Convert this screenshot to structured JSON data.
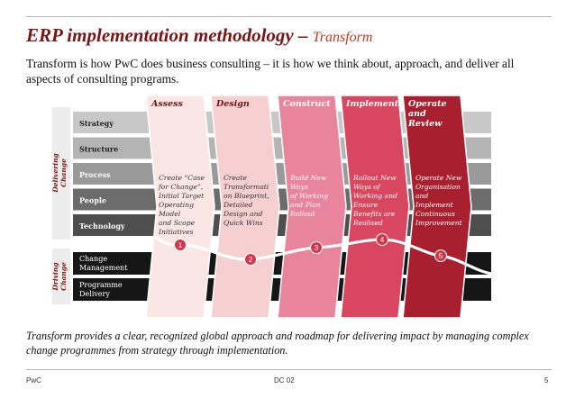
{
  "title": {
    "main": "ERP implementation methodology – ",
    "sub": "Transform"
  },
  "intro": "Transform is how PwC does business consulting – it is how we think about, approach, and deliver all aspects of consulting programs.",
  "conclusion": "Transform provides a clear, recognized global approach and roadmap for delivering impact by managing complex change programmes from strategy through implementation.",
  "footer": {
    "left": "PwC",
    "center": "DC 02",
    "page": "5"
  },
  "groups": {
    "delivering": [
      "Delivering",
      "Change"
    ],
    "driving": [
      "Driving",
      "Change"
    ]
  },
  "rows": {
    "delivering": [
      "Strategy",
      "Structure",
      "Process",
      "People",
      "Technology"
    ],
    "driving": [
      [
        "Change",
        "Management"
      ],
      [
        "Programme",
        "Delivery"
      ]
    ]
  },
  "phases": [
    {
      "name": [
        "Assess"
      ],
      "number": "1",
      "fill": "#fbe6e6",
      "header_color": "#6e1416",
      "text_color": "#333333",
      "desc": [
        "Create “Case",
        "for Change”,",
        "Initial Target",
        "Operating",
        "Model",
        "and Scope",
        "Initiatives"
      ]
    },
    {
      "name": [
        "Design"
      ],
      "number": "2",
      "fill": "#f6cfd1",
      "header_color": "#6e1416",
      "text_color": "#333333",
      "desc": [
        "Create",
        "Transformati",
        "on Blueprint,",
        "Detailed",
        "Design and",
        "Quick Wins"
      ]
    },
    {
      "name": [
        "Construct"
      ],
      "number": "3",
      "fill": "#e8849b",
      "header_color": "#ffffff",
      "text_color": "#ffffff",
      "desc": [
        "Build New",
        "Ways",
        "of Working",
        "and Plan",
        "Rollout"
      ]
    },
    {
      "name": [
        "Implement"
      ],
      "number": "4",
      "fill": "#d8465f",
      "header_color": "#ffffff",
      "text_color": "#ffffff",
      "desc": [
        "Rollout New",
        "Ways of",
        "Working and",
        "Ensure",
        "Benefits are",
        "Realised"
      ]
    },
    {
      "name": [
        "Operate",
        "and",
        "Review"
      ],
      "number": "5",
      "fill": "#a8202f",
      "header_color": "#ffffff",
      "text_color": "#ffffff",
      "desc": [
        "Operate New",
        "Organisation",
        "and",
        "Implement",
        "Continuous",
        "Improvement"
      ]
    }
  ],
  "colors": {
    "title": "#7a1417",
    "title_sub": "#c0391f",
    "number_circle": "#d3364b",
    "row_shades": [
      "#c8c8c8",
      "#b4b4b4",
      "#9a9a9a",
      "#6c6c6c",
      "#4e4e4e"
    ],
    "driving_rows": "#161616"
  }
}
